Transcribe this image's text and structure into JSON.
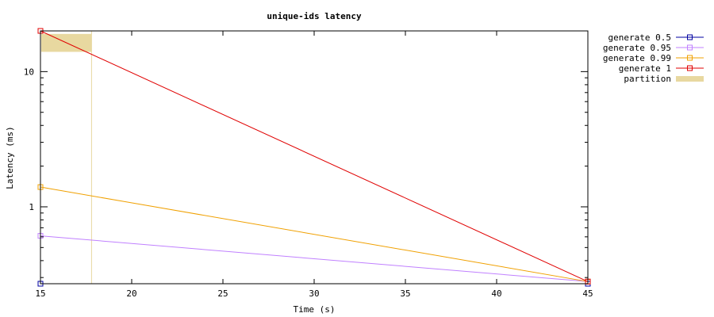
{
  "chart_data": {
    "type": "line",
    "title": "unique-ids latency",
    "xlabel": "Time (s)",
    "ylabel": "Latency (ms)",
    "xlim": [
      15,
      45
    ],
    "ylim": [
      0.27,
      20
    ],
    "y_scale": "log",
    "x_ticks": [
      15,
      20,
      25,
      30,
      35,
      40,
      45
    ],
    "y_ticks": [
      1,
      10
    ],
    "series": [
      {
        "name": "generate 0.5",
        "color": "#0000a0",
        "x": [
          15,
          45
        ],
        "y": [
          0.27,
          0.27
        ]
      },
      {
        "name": "generate 0.95",
        "color": "#c080ff",
        "x": [
          15,
          45
        ],
        "y": [
          0.61,
          0.28
        ]
      },
      {
        "name": "generate 0.99",
        "color": "#f0a000",
        "x": [
          15,
          45
        ],
        "y": [
          1.4,
          0.28
        ]
      },
      {
        "name": "generate 1",
        "color": "#e00000",
        "x": [
          15,
          45
        ],
        "y": [
          20,
          0.28
        ]
      }
    ],
    "partition": {
      "name": "partition",
      "color": "#e8d8a0",
      "x_start": 15,
      "x_end": 17.8,
      "y_from": 14,
      "y_to": 19
    },
    "legend_position": "outside-right-top"
  }
}
